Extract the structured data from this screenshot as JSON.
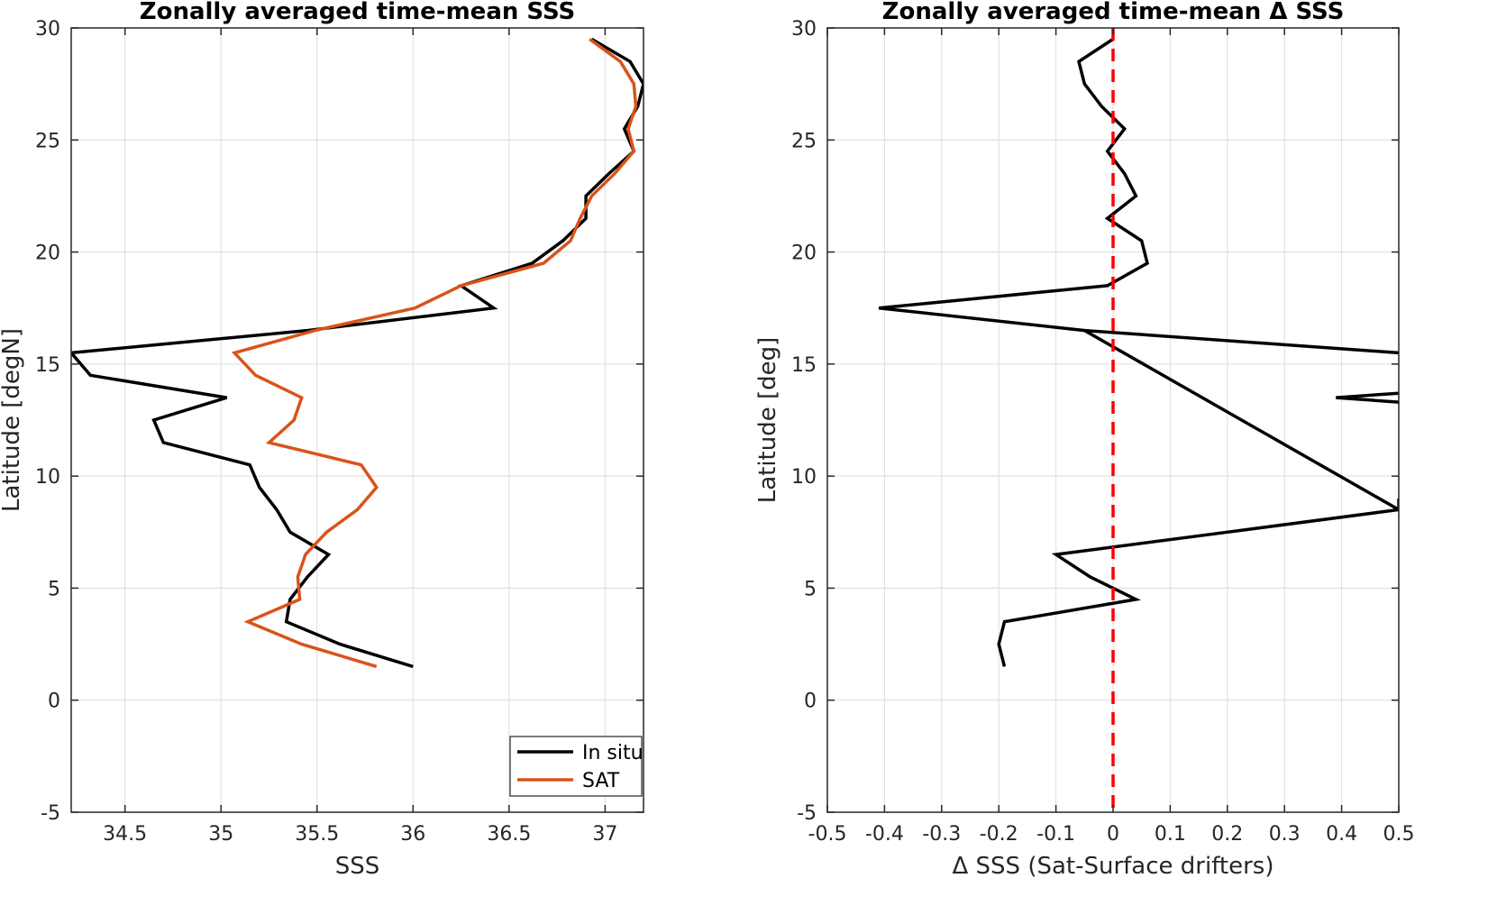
{
  "chart_data": [
    {
      "type": "line",
      "title": "Zonally averaged time-mean SSS",
      "xlabel": "SSS",
      "ylabel": "Latitude [degN]",
      "xlim": [
        34.22,
        37.2
      ],
      "ylim": [
        -5,
        30
      ],
      "xticks": [
        34.5,
        35,
        35.5,
        36,
        36.5,
        37
      ],
      "xtick_labels": [
        "34.5",
        "35",
        "35.5",
        "36",
        "36.5",
        "37"
      ],
      "yticks": [
        -5,
        0,
        5,
        10,
        15,
        20,
        25,
        30
      ],
      "ytick_labels": [
        "-5",
        "0",
        "5",
        "10",
        "15",
        "20",
        "25",
        "30"
      ],
      "grid": true,
      "legend": "bottom-right",
      "series": [
        {
          "name": "In situ",
          "color": "#000000",
          "y": [
            1.5,
            2.5,
            3.5,
            4.5,
            5.5,
            6.5,
            7.5,
            8.5,
            9.5,
            10.5,
            11.5,
            12.5,
            13.5,
            14.5,
            15.5,
            16.5,
            17.5,
            18.5,
            19.5,
            20.5,
            21.5,
            22.5,
            23.5,
            24.5,
            25.5,
            26.5,
            27.5,
            28.5,
            29.5
          ],
          "x": [
            36.0,
            35.62,
            35.34,
            35.36,
            35.45,
            35.56,
            35.36,
            35.29,
            35.2,
            35.15,
            34.7,
            34.65,
            35.03,
            34.32,
            34.22,
            35.45,
            36.42,
            36.25,
            36.62,
            36.78,
            36.9,
            36.9,
            37.02,
            37.15,
            37.1,
            37.17,
            37.2,
            37.13,
            36.93
          ]
        },
        {
          "name": "SAT",
          "color": "#d95319",
          "y": [
            1.5,
            2.5,
            3.5,
            4.5,
            5.5,
            6.5,
            7.5,
            8.5,
            9.5,
            10.5,
            11.5,
            12.5,
            13.5,
            14.5,
            15.5,
            16.5,
            17.5,
            18.5,
            19.5,
            20.5,
            21.5,
            22.5,
            23.5,
            24.5,
            25.5,
            26.5,
            27.5,
            28.5,
            29.5
          ],
          "x": [
            35.81,
            35.42,
            35.14,
            35.41,
            35.4,
            35.44,
            35.55,
            35.71,
            35.81,
            35.73,
            35.25,
            35.38,
            35.42,
            35.18,
            35.07,
            35.49,
            36.01,
            36.25,
            36.68,
            36.82,
            36.87,
            36.93,
            37.05,
            37.15,
            37.12,
            37.16,
            37.15,
            37.08,
            36.92
          ]
        }
      ]
    },
    {
      "type": "line",
      "title": "Zonally averaged time-mean Δ SSS",
      "xlabel": "Δ SSS (Sat-Surface drifters)",
      "ylabel": "Latitude [deg]",
      "xlim": [
        -0.5,
        0.5
      ],
      "ylim": [
        -5,
        30
      ],
      "xticks": [
        -0.5,
        -0.4,
        -0.3,
        -0.2,
        -0.1,
        0,
        0.1,
        0.2,
        0.3,
        0.4,
        0.5
      ],
      "xtick_labels": [
        "-0.5",
        "-0.4",
        "-0.3",
        "-0.2",
        "-0.1",
        "0",
        "0.1",
        "0.2",
        "0.3",
        "0.4",
        "0.5"
      ],
      "yticks": [
        -5,
        0,
        5,
        10,
        15,
        20,
        25,
        30
      ],
      "ytick_labels": [
        "-5",
        "0",
        "5",
        "10",
        "15",
        "20",
        "25",
        "30"
      ],
      "grid": true,
      "reference_line": {
        "x": 0,
        "color": "#ff0000",
        "style": "dashed"
      },
      "series": [
        {
          "color": "#000000",
          "y": [
            1.5,
            2.5,
            3.5,
            4.5,
            5.5,
            6.5,
            7.5,
            8.5,
            16.5,
            17.5,
            18.5,
            19.5,
            20.5,
            21.5,
            22.5,
            23.5,
            24.5,
            25.5,
            26.5,
            27.5,
            28.5,
            29.5
          ],
          "x": [
            -0.19,
            -0.2,
            -0.19,
            0.04,
            -0.04,
            -0.1,
            0.2,
            0.5,
            -0.05,
            -0.41,
            -0.01,
            0.06,
            0.05,
            -0.01,
            0.04,
            0.02,
            -0.01,
            0.02,
            -0.02,
            -0.05,
            -0.06,
            0.0
          ]
        },
        {
          "color": "#000000",
          "y": [
            16.5,
            15.5
          ],
          "x": [
            -0.05,
            0.5
          ]
        },
        {
          "color": "#000000",
          "y": [
            13.7,
            13.5,
            13.3
          ],
          "x": [
            0.5,
            0.39,
            0.5
          ]
        },
        {
          "color": "#000000",
          "y": [
            9.0,
            8.5
          ],
          "x": [
            0.5,
            0.5
          ]
        }
      ]
    }
  ]
}
